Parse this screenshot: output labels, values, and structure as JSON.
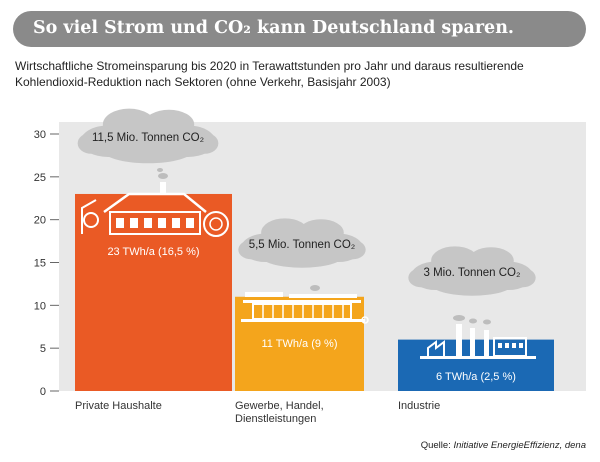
{
  "title": "So viel Strom und CO₂ kann Deutschland sparen.",
  "subtitle": "Wirtschaftliche Stromeinsparung bis 2020 in Terawattstunden pro Jahr und daraus resultierende Kohlendioxid-Reduktion nach Sektoren (ohne Verkehr, Basisjahr 2003)",
  "source": {
    "label": "Quelle:",
    "text": "Initiative EnergieEffizienz, dena"
  },
  "colors": {
    "title_bar": "#8a8a8a",
    "panel": "#e8e8e8",
    "cloud": "#c6c6c6",
    "private": "#ea5a25",
    "gewerbe": "#f4a51c",
    "industrie": "#1b69b4"
  },
  "icons": [
    "house-icon",
    "shop-icon",
    "factory-icon",
    "cloud-icon"
  ],
  "chart_data": {
    "type": "bar",
    "title": "",
    "xlabel": "",
    "ylabel": "",
    "ylim": [
      0,
      30
    ],
    "yticks": [
      "0",
      "5",
      "10",
      "15",
      "20",
      "25",
      "30"
    ],
    "grid": false,
    "categories": [
      "Private Haushalte",
      "Gewerbe, Handel, Dienstleistungen",
      "Industrie"
    ],
    "category_lines": [
      [
        "Private Haushalte"
      ],
      [
        "Gewerbe, Handel,",
        "Dienstleistungen"
      ],
      [
        "Industrie"
      ]
    ],
    "values": [
      23,
      11,
      6
    ],
    "bar_labels": [
      "23 TWh/a (16,5 %)",
      "11 TWh/a (9 %)",
      "6 TWh/a (2,5 %)"
    ],
    "co2_labels": [
      "11,5 Mio. Tonnen CO₂",
      "5,5 Mio. Tonnen CO₂",
      "3 Mio. Tonnen CO₂"
    ],
    "co2_values": [
      11.5,
      5.5,
      3
    ]
  }
}
